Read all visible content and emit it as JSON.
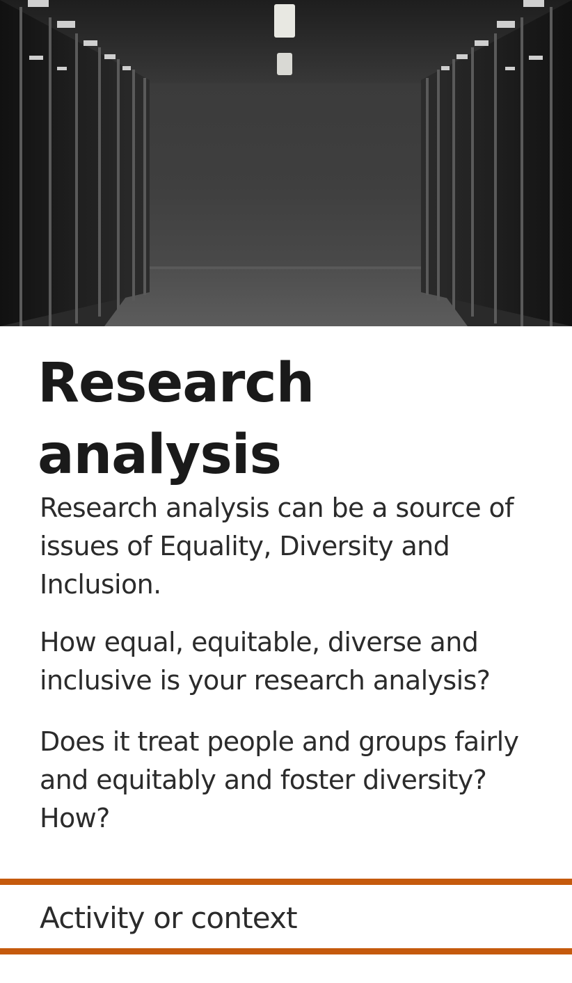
{
  "hero": {
    "image": "server-room-corridor"
  },
  "card": {
    "title_line1": "Research",
    "title_line2": "analysis",
    "paragraphs": [
      "Research analysis can be a source of issues of Equality, Diversity and Inclusion.",
      "How equal, equitable, diverse and inclusive is your research analysis?",
      "Does it treat people and groups fairly and equitably and foster diversity? How?"
    ]
  },
  "context": {
    "label": "Activity or context"
  },
  "colors": {
    "accent": "#c55a0d",
    "text": "#2b2b2b",
    "title": "#1a1a1a"
  }
}
